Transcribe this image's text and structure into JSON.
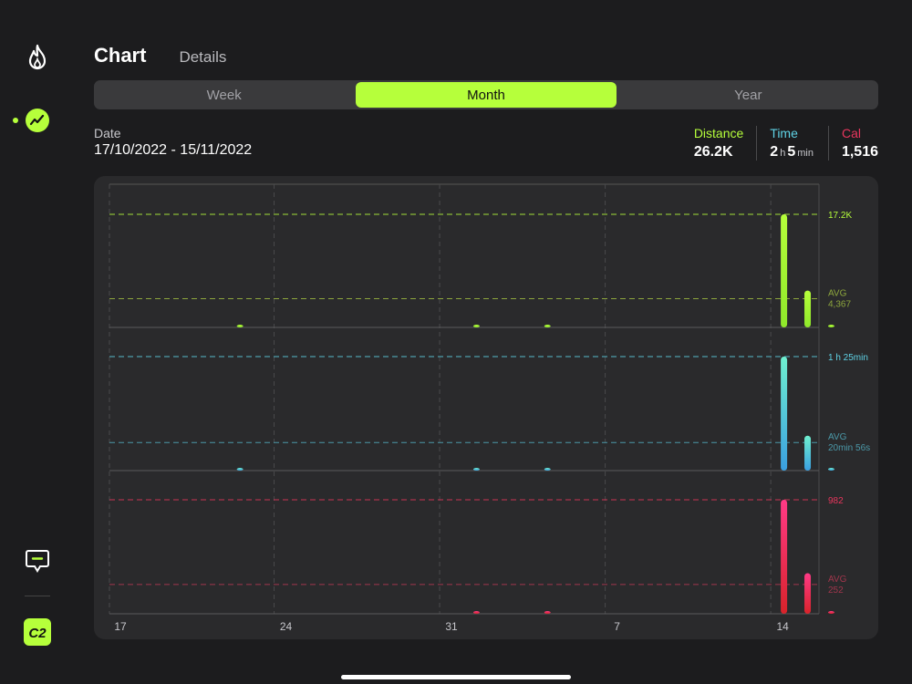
{
  "header": {
    "tabs": [
      {
        "label": "Chart"
      },
      {
        "label": "Details"
      }
    ]
  },
  "segment": {
    "options": [
      "Week",
      "Month",
      "Year"
    ],
    "active": "Month"
  },
  "summary": {
    "date_label": "Date",
    "date_value": "17/10/2022 - 15/11/2022",
    "distance": {
      "label": "Distance",
      "value": "26.2K"
    },
    "time": {
      "label": "Time",
      "hours": "2",
      "h_unit": "h",
      "minutes": "5",
      "min_unit": "min"
    },
    "cal": {
      "label": "Cal",
      "value": "1,516"
    }
  },
  "sidebar": {
    "icons": [
      "flame-icon",
      "activity-chart-icon",
      "chat-icon",
      "app-logo-icon"
    ]
  },
  "colors": {
    "accent": "#b6ff3b",
    "distance": "#b6ff3b",
    "time": "#5fd3e6",
    "cal": "#e8365d"
  },
  "chart_data": {
    "type": "bar",
    "x_ticks": [
      "17",
      "24",
      "31",
      "7",
      "14"
    ],
    "panels": [
      {
        "name": "Distance",
        "max_label": "17.2K",
        "avg_label": [
          "AVG",
          "4,367"
        ],
        "max": 17200,
        "avg": 4367,
        "color_top": "#b6ff3b",
        "color_bottom": "#8fe82a",
        "bars": [
          {
            "day": 5,
            "value": 60
          },
          {
            "day": 15,
            "value": 160
          },
          {
            "day": 18,
            "value": 350
          },
          {
            "day": 28,
            "value": 17200
          },
          {
            "day": 29,
            "value": 5600
          },
          {
            "day": 30,
            "value": 350
          }
        ]
      },
      {
        "name": "Time",
        "max_label": "1 h 25min",
        "avg_label": [
          "AVG",
          "20min 56s"
        ],
        "max": 85,
        "avg": 20.93,
        "color_top": "#6ff0d0",
        "color_bottom": "#3a9fe0",
        "bars": [
          {
            "day": 5,
            "value": 0.3
          },
          {
            "day": 15,
            "value": 0.9
          },
          {
            "day": 18,
            "value": 2
          },
          {
            "day": 28,
            "value": 85
          },
          {
            "day": 29,
            "value": 26
          },
          {
            "day": 30,
            "value": 2
          }
        ]
      },
      {
        "name": "Cal",
        "max_label": "982",
        "avg_label": [
          "AVG",
          "252"
        ],
        "max": 982,
        "avg": 252,
        "color_top": "#ff3a86",
        "color_bottom": "#d8232a",
        "bars": [
          {
            "day": 15,
            "value": 11
          },
          {
            "day": 18,
            "value": 22
          },
          {
            "day": 28,
            "value": 982
          },
          {
            "day": 29,
            "value": 350
          },
          {
            "day": 30,
            "value": 22
          }
        ]
      }
    ]
  }
}
